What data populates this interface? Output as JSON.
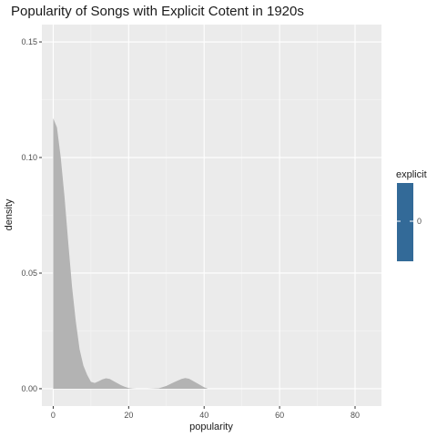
{
  "chart_data": {
    "type": "area",
    "title": "Popularity of Songs with Explicit Cotent in 1920s",
    "xlabel": "popularity",
    "ylabel": "density",
    "xlim": [
      -3,
      87
    ],
    "ylim": [
      -0.0075,
      0.1575
    ],
    "x_ticks": [
      0,
      20,
      40,
      60,
      80
    ],
    "x_tick_labels": [
      "0",
      "20",
      "40",
      "60",
      "80"
    ],
    "y_ticks": [
      0.0,
      0.05,
      0.1,
      0.15
    ],
    "y_tick_labels": [
      "0.00",
      "0.05",
      "0.10",
      "0.15"
    ],
    "grid": true,
    "fill_color": "#b3b3b3",
    "panel_color": "#ebebeb",
    "legend": {
      "title": "explicit",
      "position": "right",
      "type": "colorbar",
      "colors": [
        "#132b43",
        "#56b1f7"
      ],
      "labels": [
        "0"
      ]
    },
    "series": [
      {
        "x": [
          0,
          1,
          2,
          3,
          4,
          5,
          6,
          7,
          8,
          9,
          10,
          11,
          12,
          13,
          14,
          15,
          16,
          17,
          18,
          19,
          20,
          21,
          22,
          25,
          28,
          30,
          32,
          34,
          35,
          36,
          38,
          40,
          41
        ],
        "y": [
          0.117,
          0.113,
          0.1,
          0.083,
          0.063,
          0.044,
          0.029,
          0.017,
          0.01,
          0.006,
          0.003,
          0.0025,
          0.0032,
          0.004,
          0.0045,
          0.0042,
          0.0033,
          0.0024,
          0.0015,
          0.0008,
          0.0003,
          0.0001,
          0.0,
          0.0,
          0.0002,
          0.0012,
          0.0028,
          0.0042,
          0.0046,
          0.0043,
          0.0025,
          0.0006,
          0.0
        ]
      }
    ]
  }
}
